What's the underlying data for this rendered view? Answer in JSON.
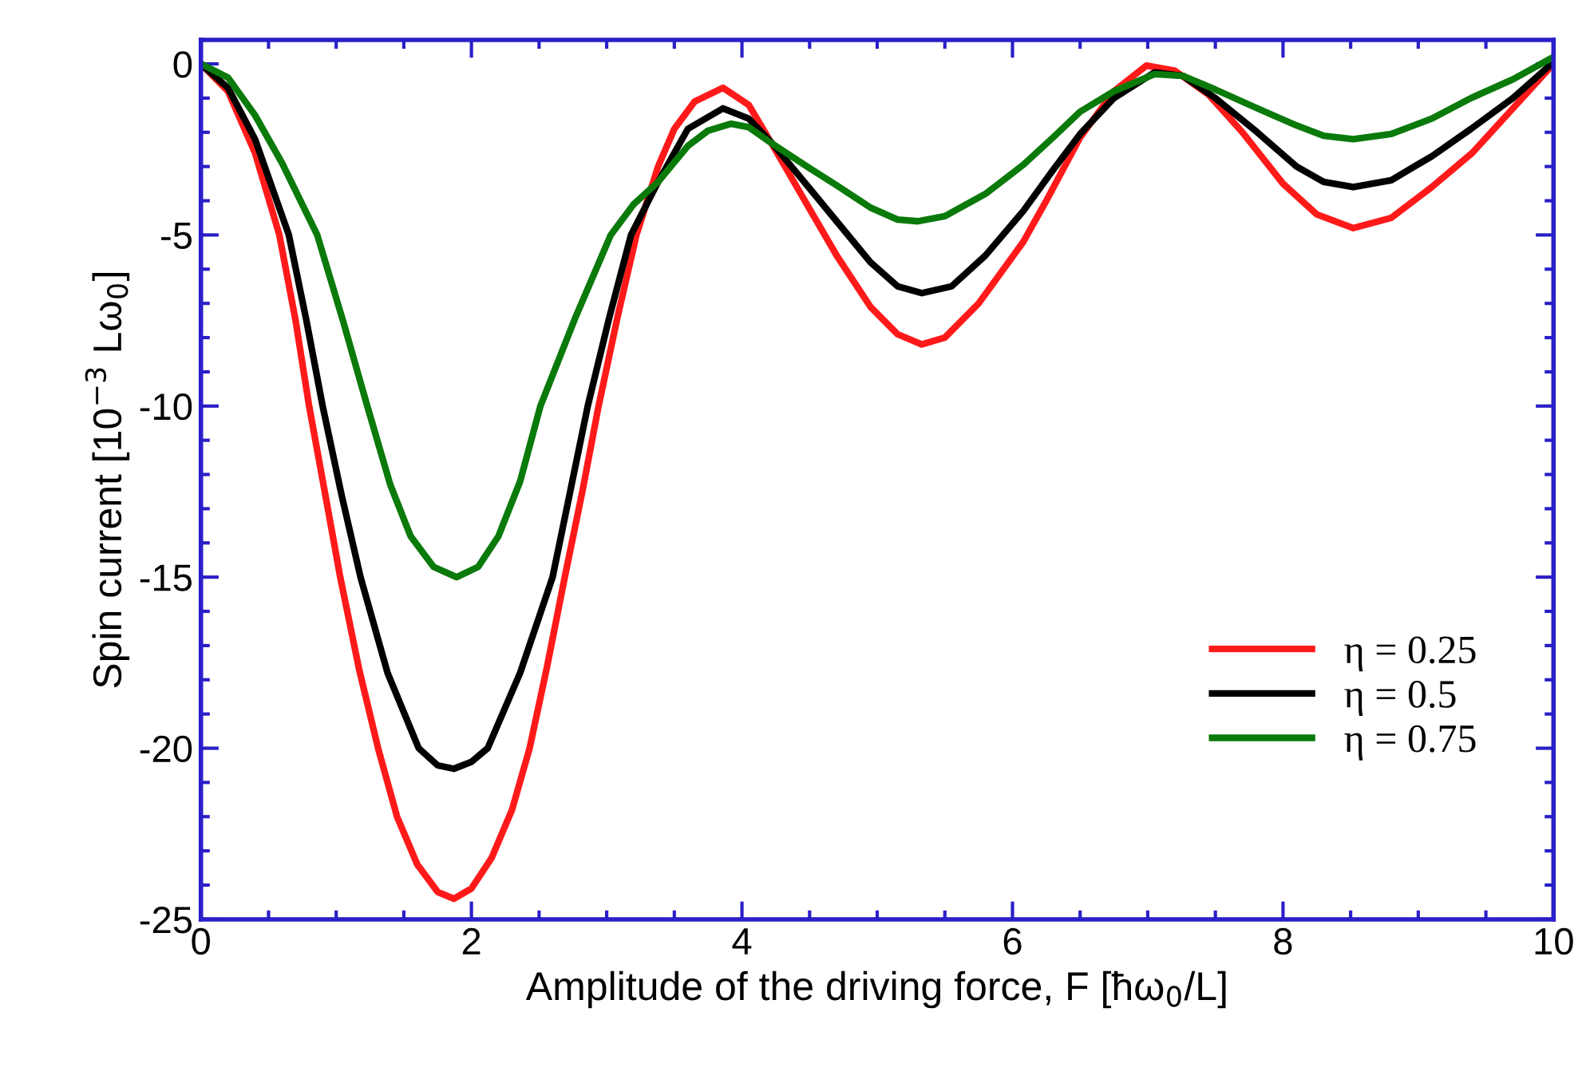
{
  "chart_data": {
    "type": "line",
    "xlabel": "Amplitude of the driving force, F [ħω$_{0}$/L]",
    "ylabel": "Spin current [10$^{−3}$ Lω$_{0}$]",
    "xlim": [
      0,
      10
    ],
    "xticks": [
      0,
      2,
      4,
      6,
      8,
      10
    ],
    "ylim": [
      -25,
      0.7
    ],
    "yticks": [
      -25,
      -20,
      -15,
      -10,
      -5,
      0
    ],
    "grid": false,
    "legend": "lower right",
    "marker": "none",
    "line_style": "solid",
    "series": [
      {
        "name": "η = 0.25",
        "color": "#ff1a1a",
        "x": [
          0,
          0.2,
          0.4,
          0.58,
          0.7,
          0.8,
          0.92,
          1.03,
          1.17,
          1.31,
          1.45,
          1.6,
          1.75,
          1.87,
          2.0,
          2.15,
          2.3,
          2.43,
          2.56,
          2.69,
          2.82,
          2.94,
          3.08,
          3.22,
          3.38,
          3.5,
          3.65,
          3.86,
          4.05,
          4.23,
          4.45,
          4.7,
          4.95,
          5.15,
          5.33,
          5.5,
          5.75,
          6.08,
          6.25,
          6.5,
          6.75,
          6.99,
          7.2,
          7.45,
          7.7,
          8.0,
          8.25,
          8.52,
          8.8,
          9.1,
          9.4,
          9.7,
          10
        ],
        "values": [
          0,
          -0.8,
          -2.6,
          -5,
          -7.5,
          -10,
          -12.6,
          -15,
          -17.7,
          -20,
          -22,
          -23.4,
          -24.2,
          -24.4,
          -24.1,
          -23.2,
          -21.8,
          -20,
          -17.6,
          -15,
          -12.5,
          -10,
          -7.4,
          -5,
          -3,
          -1.9,
          -1.1,
          -0.7,
          -1.2,
          -2.4,
          -3.9,
          -5.6,
          -7.1,
          -7.9,
          -8.2,
          -8,
          -7,
          -5.2,
          -4,
          -2.15,
          -0.8,
          -0.05,
          -0.2,
          -0.9,
          -2,
          -3.5,
          -4.4,
          -4.8,
          -4.5,
          -3.6,
          -2.6,
          -1.3,
          0
        ]
      },
      {
        "name": "η = 0.5",
        "color": "#000000",
        "x": [
          0,
          0.2,
          0.4,
          0.65,
          0.78,
          0.9,
          1.04,
          1.18,
          1.38,
          1.61,
          1.75,
          1.87,
          2.0,
          2.12,
          2.36,
          2.6,
          2.73,
          2.86,
          3.02,
          3.18,
          3.38,
          3.6,
          3.86,
          4.05,
          4.23,
          4.45,
          4.7,
          4.95,
          5.15,
          5.33,
          5.55,
          5.8,
          6.08,
          6.3,
          6.5,
          6.75,
          7.05,
          7.26,
          7.5,
          7.81,
          8.1,
          8.3,
          8.52,
          8.8,
          9.1,
          9.39,
          9.7,
          10
        ],
        "values": [
          0,
          -0.7,
          -2.2,
          -5,
          -7.5,
          -10,
          -12.6,
          -15,
          -17.8,
          -20,
          -20.5,
          -20.6,
          -20.4,
          -20,
          -17.8,
          -15,
          -12.5,
          -10,
          -7.4,
          -5,
          -3.45,
          -1.9,
          -1.3,
          -1.6,
          -2.35,
          -3.4,
          -4.6,
          -5.8,
          -6.5,
          -6.7,
          -6.5,
          -5.6,
          -4.3,
          -3.1,
          -2.05,
          -1,
          -0.25,
          -0.35,
          -1,
          -2,
          -3,
          -3.45,
          -3.6,
          -3.4,
          -2.7,
          -1.9,
          -1,
          0.05
        ]
      },
      {
        "name": "η = 0.75",
        "color": "#0a7a0a",
        "x": [
          0,
          0.2,
          0.4,
          0.6,
          0.86,
          1.05,
          1.23,
          1.4,
          1.55,
          1.72,
          1.89,
          2.05,
          2.2,
          2.36,
          2.51,
          2.77,
          3.03,
          3.2,
          3.38,
          3.6,
          3.75,
          3.92,
          4.05,
          4.23,
          4.5,
          4.7,
          4.95,
          5.15,
          5.3,
          5.5,
          5.8,
          6.08,
          6.3,
          6.5,
          6.75,
          7.05,
          7.26,
          7.5,
          7.81,
          8.1,
          8.3,
          8.52,
          8.8,
          9.1,
          9.39,
          9.7,
          10
        ],
        "values": [
          0,
          -0.4,
          -1.5,
          -2.9,
          -5,
          -7.5,
          -10,
          -12.3,
          -13.8,
          -14.7,
          -15,
          -14.7,
          -13.8,
          -12.2,
          -10,
          -7.4,
          -5,
          -4.1,
          -3.45,
          -2.4,
          -1.95,
          -1.75,
          -1.85,
          -2.35,
          -3.05,
          -3.55,
          -4.2,
          -4.55,
          -4.6,
          -4.45,
          -3.8,
          -2.95,
          -2.15,
          -1.4,
          -0.8,
          -0.3,
          -0.35,
          -0.75,
          -1.3,
          -1.8,
          -2.1,
          -2.2,
          -2.05,
          -1.6,
          -1,
          -0.45,
          0.2
        ]
      }
    ]
  }
}
